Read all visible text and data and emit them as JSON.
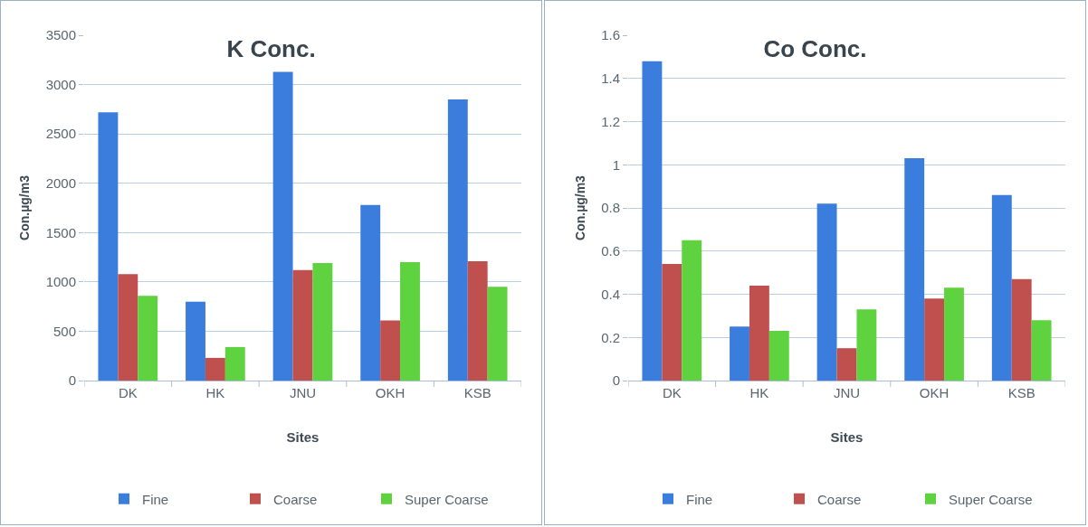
{
  "chart_data": [
    {
      "type": "bar",
      "title": "K Conc.",
      "xlabel": "Sites",
      "ylabel": "Con.µg/m3",
      "categories": [
        "DK",
        "HK",
        "JNU",
        "OKH",
        "KSB"
      ],
      "series": [
        {
          "name": "Fine",
          "color": "#3b7ddd",
          "values": [
            2720,
            800,
            3130,
            1780,
            2850
          ]
        },
        {
          "name": "Coarse",
          "color": "#c0504d",
          "values": [
            1080,
            230,
            1120,
            610,
            1210
          ]
        },
        {
          "name": "Super Coarse",
          "color": "#5fd33f",
          "values": [
            860,
            340,
            1190,
            1200,
            950
          ]
        }
      ],
      "ylim": [
        0,
        3500
      ],
      "yticks": [
        0,
        500,
        1000,
        1500,
        2000,
        2500,
        3000,
        3500
      ],
      "grid": "y",
      "legend": "bottom"
    },
    {
      "type": "bar",
      "title": "Co Conc.",
      "xlabel": "Sites",
      "ylabel": "Con.µg/m3",
      "categories": [
        "DK",
        "HK",
        "JNU",
        "OKH",
        "KSB"
      ],
      "series": [
        {
          "name": "Fine",
          "color": "#3b7ddd",
          "values": [
            1.48,
            0.25,
            0.82,
            1.03,
            0.86
          ]
        },
        {
          "name": "Coarse",
          "color": "#c0504d",
          "values": [
            0.54,
            0.44,
            0.15,
            0.38,
            0.47
          ]
        },
        {
          "name": "Super Coarse",
          "color": "#5fd33f",
          "values": [
            0.65,
            0.23,
            0.33,
            0.43,
            0.28
          ]
        }
      ],
      "ylim": [
        0,
        1.6
      ],
      "yticks": [
        0,
        0.2,
        0.4,
        0.6,
        0.8,
        1,
        1.2,
        1.4,
        1.6
      ],
      "grid": "y",
      "legend": "bottom"
    }
  ]
}
